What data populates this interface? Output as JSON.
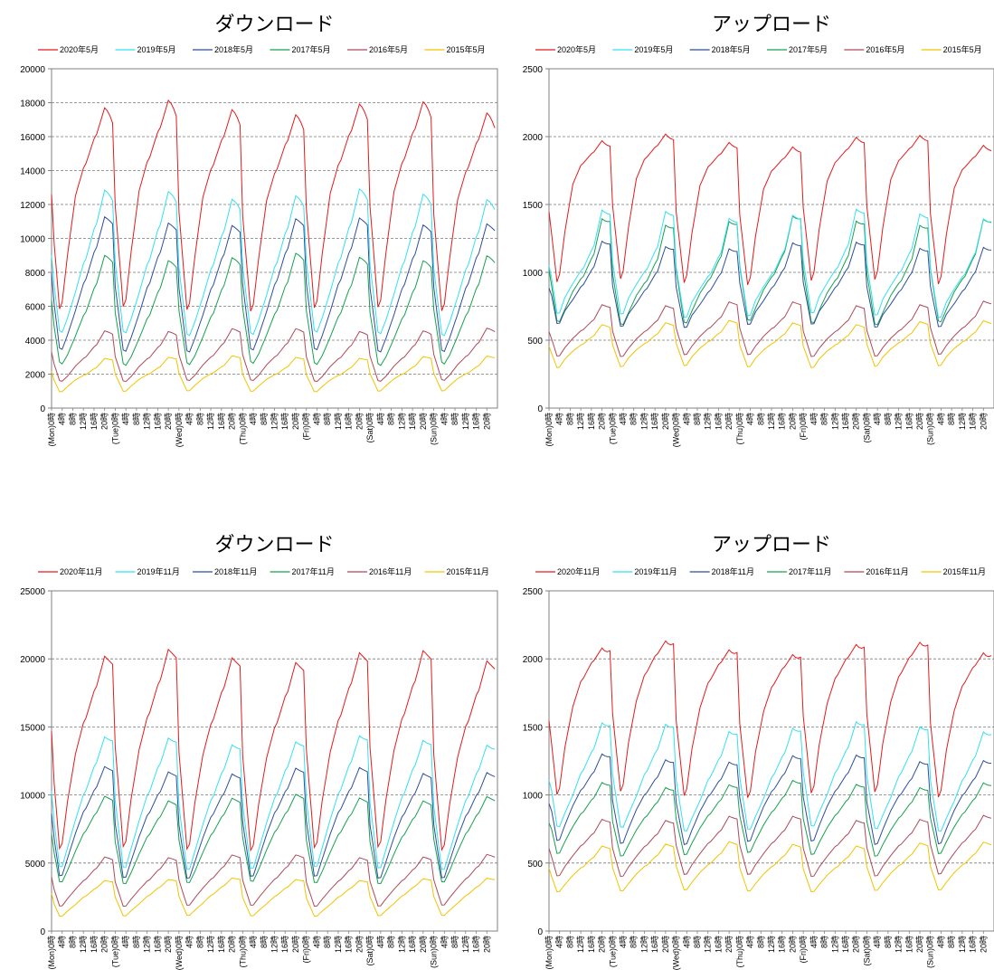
{
  "series_names_may": [
    "2020年5月",
    "2019年5月",
    "2018年5月",
    "2017年5月",
    "2016年5月",
    "2015年5月"
  ],
  "series_names_nov": [
    "2020年11月",
    "2019年11月",
    "2018年11月",
    "2017年11月",
    "2016年11月",
    "2015年11月"
  ],
  "series_colors": [
    "#e31a1c",
    "#33e0f0",
    "#2e4d9a",
    "#17a050",
    "#b04858",
    "#f2c300"
  ],
  "x_tick_labels": [
    "(Mon)0時",
    "4時",
    "8時",
    "12時",
    "16時",
    "20時",
    "(Tue)0時",
    "4時",
    "8時",
    "12時",
    "16時",
    "20時",
    "(Wed)0時",
    "4時",
    "8時",
    "12時",
    "16時",
    "20時",
    "(Thu)0時",
    "4時",
    "8時",
    "12時",
    "16時",
    "20時",
    "(Fri)0時",
    "4時",
    "8時",
    "12時",
    "16時",
    "20時",
    "(Sat)0時",
    "4時",
    "8時",
    "12時",
    "16時",
    "20時",
    "(Sun)0時",
    "4時",
    "8時",
    "12時",
    "16時",
    "20時"
  ],
  "chart_data": [
    {
      "type": "line",
      "title": "ダウンロード",
      "ylim": [
        0,
        20000
      ],
      "yticks": [
        0,
        2000,
        4000,
        6000,
        8000,
        10000,
        12000,
        14000,
        16000,
        18000,
        20000
      ],
      "grid": "horizontal dashed",
      "legend": "top",
      "series": [
        {
          "name": "2020年5月",
          "daily": {
            "min": 5300,
            "v4": 9000,
            "v8": 12500,
            "v12": 14300,
            "v16": 16000,
            "peak": 17700,
            "end": 16800
          }
        },
        {
          "name": "2019年5月",
          "daily": {
            "min": 4100,
            "v4": 5200,
            "v8": 6700,
            "v12": 8500,
            "v16": 10500,
            "peak": 12600,
            "end": 12000
          }
        },
        {
          "name": "2018年5月",
          "daily": {
            "min": 3100,
            "v4": 4200,
            "v8": 5600,
            "v12": 7300,
            "v16": 9100,
            "peak": 11000,
            "end": 10600
          }
        },
        {
          "name": "2017年5月",
          "daily": {
            "min": 2400,
            "v4": 3100,
            "v8": 4200,
            "v12": 5500,
            "v16": 7100,
            "peak": 8900,
            "end": 8500
          }
        },
        {
          "name": "2016年5月",
          "daily": {
            "min": 1500,
            "v4": 1900,
            "v8": 2500,
            "v12": 3000,
            "v16": 3700,
            "peak": 4600,
            "end": 4400
          }
        },
        {
          "name": "2015年5月",
          "daily": {
            "min": 900,
            "v4": 1300,
            "v8": 1700,
            "v12": 2000,
            "v16": 2400,
            "peak": 3000,
            "end": 2900
          }
        }
      ]
    },
    {
      "type": "line",
      "title": "アップロード",
      "ylim": [
        0,
        2500
      ],
      "yticks": [
        0,
        500,
        1000,
        1500,
        2000,
        2500
      ],
      "grid": "horizontal dashed",
      "legend": "top",
      "series": [
        {
          "name": "2020年5月",
          "daily": {
            "min": 880,
            "v4": 1300,
            "v8": 1650,
            "v12": 1800,
            "v16": 1880,
            "peak": 1970,
            "end": 1930
          }
        },
        {
          "name": "2019年5月",
          "daily": {
            "min": 650,
            "v4": 800,
            "v8": 900,
            "v12": 1000,
            "v16": 1150,
            "peak": 1430,
            "end": 1400
          }
        },
        {
          "name": "2018年5月",
          "daily": {
            "min": 580,
            "v4": 700,
            "v8": 780,
            "v12": 880,
            "v16": 1000,
            "peak": 1200,
            "end": 1180
          }
        },
        {
          "name": "2017年5月",
          "daily": {
            "min": 600,
            "v4": 720,
            "v8": 850,
            "v12": 950,
            "v16": 1100,
            "peak": 1380,
            "end": 1360
          }
        },
        {
          "name": "2016年5月",
          "daily": {
            "min": 370,
            "v4": 450,
            "v8": 520,
            "v12": 580,
            "v16": 650,
            "peak": 770,
            "end": 750
          }
        },
        {
          "name": "2015年5月",
          "daily": {
            "min": 290,
            "v4": 370,
            "v8": 430,
            "v12": 480,
            "v16": 540,
            "peak": 630,
            "end": 610
          }
        }
      ]
    },
    {
      "type": "line",
      "title": "ダウンロード",
      "ylim": [
        0,
        25000
      ],
      "yticks": [
        0,
        5000,
        10000,
        15000,
        20000,
        25000
      ],
      "grid": "horizontal dashed",
      "legend": "top",
      "series": [
        {
          "name": "2020年11月",
          "daily": {
            "min": 5400,
            "v4": 9500,
            "v8": 13000,
            "v12": 15500,
            "v16": 17800,
            "peak": 20200,
            "end": 19600
          }
        },
        {
          "name": "2019年11月",
          "daily": {
            "min": 4200,
            "v4": 6000,
            "v8": 8000,
            "v12": 10000,
            "v16": 12000,
            "peak": 14000,
            "end": 13700
          }
        },
        {
          "name": "2018年11月",
          "daily": {
            "min": 3600,
            "v4": 5200,
            "v8": 7000,
            "v12": 8700,
            "v16": 10200,
            "peak": 11800,
            "end": 11500
          }
        },
        {
          "name": "2017年11月",
          "daily": {
            "min": 3300,
            "v4": 4400,
            "v8": 5800,
            "v12": 7200,
            "v16": 8500,
            "peak": 9800,
            "end": 9500
          }
        },
        {
          "name": "2016年11月",
          "daily": {
            "min": 1700,
            "v4": 2400,
            "v8": 3100,
            "v12": 3800,
            "v16": 4600,
            "peak": 5500,
            "end": 5300
          }
        },
        {
          "name": "2015年11月",
          "daily": {
            "min": 1000,
            "v4": 1500,
            "v8": 2000,
            "v12": 2600,
            "v16": 3200,
            "peak": 3800,
            "end": 3700
          }
        }
      ]
    },
    {
      "type": "line",
      "title": "アップロード",
      "ylim": [
        0,
        2500
      ],
      "yticks": [
        0,
        500,
        1000,
        1500,
        2000,
        2500
      ],
      "grid": "horizontal dashed",
      "legend": "top",
      "series": [
        {
          "name": "2020年11月",
          "daily": {
            "min": 950,
            "v4": 1350,
            "v8": 1650,
            "v12": 1850,
            "v16": 1980,
            "peak": 2080,
            "end": 2060
          }
        },
        {
          "name": "2019年11月",
          "daily": {
            "min": 720,
            "v4": 850,
            "v8": 980,
            "v12": 1150,
            "v16": 1300,
            "peak": 1500,
            "end": 1480
          }
        },
        {
          "name": "2018年11月",
          "daily": {
            "min": 620,
            "v4": 760,
            "v8": 900,
            "v12": 1020,
            "v16": 1130,
            "peak": 1270,
            "end": 1250
          }
        },
        {
          "name": "2017年11月",
          "daily": {
            "min": 540,
            "v4": 650,
            "v8": 760,
            "v12": 860,
            "v16": 960,
            "peak": 1080,
            "end": 1060
          }
        },
        {
          "name": "2016年11月",
          "daily": {
            "min": 390,
            "v4": 480,
            "v8": 560,
            "v12": 640,
            "v16": 720,
            "peak": 830,
            "end": 810
          }
        },
        {
          "name": "2015年11月",
          "daily": {
            "min": 280,
            "v4": 350,
            "v8": 420,
            "v12": 480,
            "v16": 550,
            "peak": 640,
            "end": 620
          }
        }
      ]
    }
  ]
}
